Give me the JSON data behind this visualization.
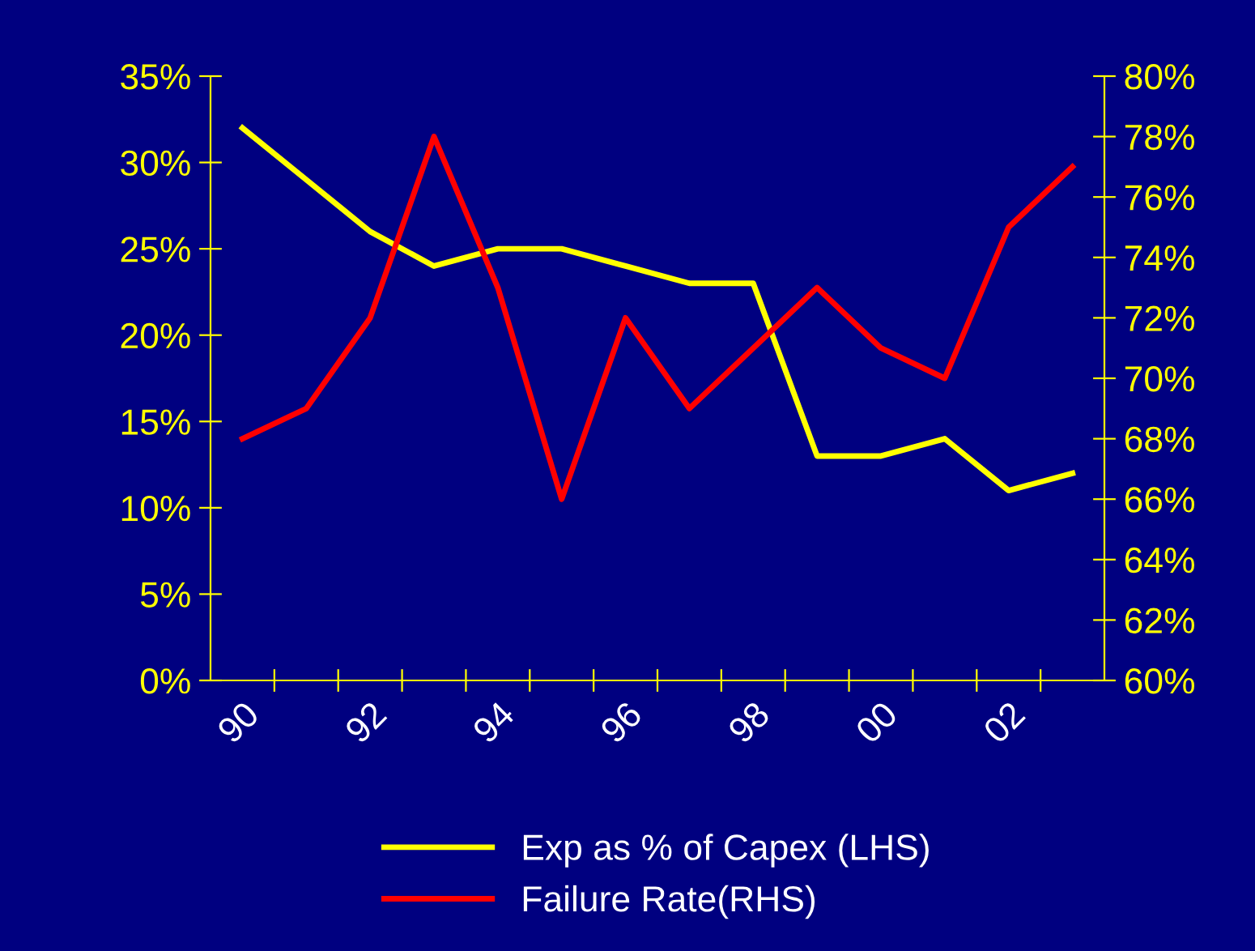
{
  "chart_data": {
    "type": "line",
    "categories": [
      "90",
      null,
      "92",
      null,
      "94",
      null,
      "96",
      null,
      "98",
      null,
      "00",
      null,
      "02",
      null
    ],
    "series": [
      {
        "name": "Exp as % of Capex (LHS)",
        "color": "#ffff00",
        "values": [
          32,
          29,
          26,
          24,
          25,
          25,
          24,
          23,
          23,
          13,
          13,
          14,
          11,
          12
        ]
      },
      {
        "name": "Failure Rate(RHS)",
        "color": "#ff0000",
        "axis": "y2",
        "values": [
          68,
          69,
          72,
          78,
          73,
          66,
          72,
          69,
          71,
          73,
          71,
          70,
          75,
          77
        ]
      }
    ],
    "ylim": [
      0,
      35
    ],
    "yticks": [
      {
        "value": 0,
        "label": "0%"
      },
      {
        "value": 5,
        "label": "5%"
      },
      {
        "value": 10,
        "label": "10%"
      },
      {
        "value": 15,
        "label": "15%"
      },
      {
        "value": 20,
        "label": "20%"
      },
      {
        "value": 25,
        "label": "25%"
      },
      {
        "value": 30,
        "label": "30%"
      },
      {
        "value": 35,
        "label": "35%"
      }
    ],
    "y2lim": [
      60,
      80
    ],
    "y2ticks": [
      {
        "value": 60,
        "label": "60%"
      },
      {
        "value": 62,
        "label": "62%"
      },
      {
        "value": 64,
        "label": "64%"
      },
      {
        "value": 66,
        "label": "66%"
      },
      {
        "value": 68,
        "label": "68%"
      },
      {
        "value": 70,
        "label": "70%"
      },
      {
        "value": 72,
        "label": "72%"
      },
      {
        "value": 74,
        "label": "74%"
      },
      {
        "value": 76,
        "label": "76%"
      },
      {
        "value": 78,
        "label": "78%"
      },
      {
        "value": 80,
        "label": "80%"
      }
    ],
    "grid": false,
    "legend": "bottom",
    "marker": "none",
    "line_style": "solid"
  }
}
